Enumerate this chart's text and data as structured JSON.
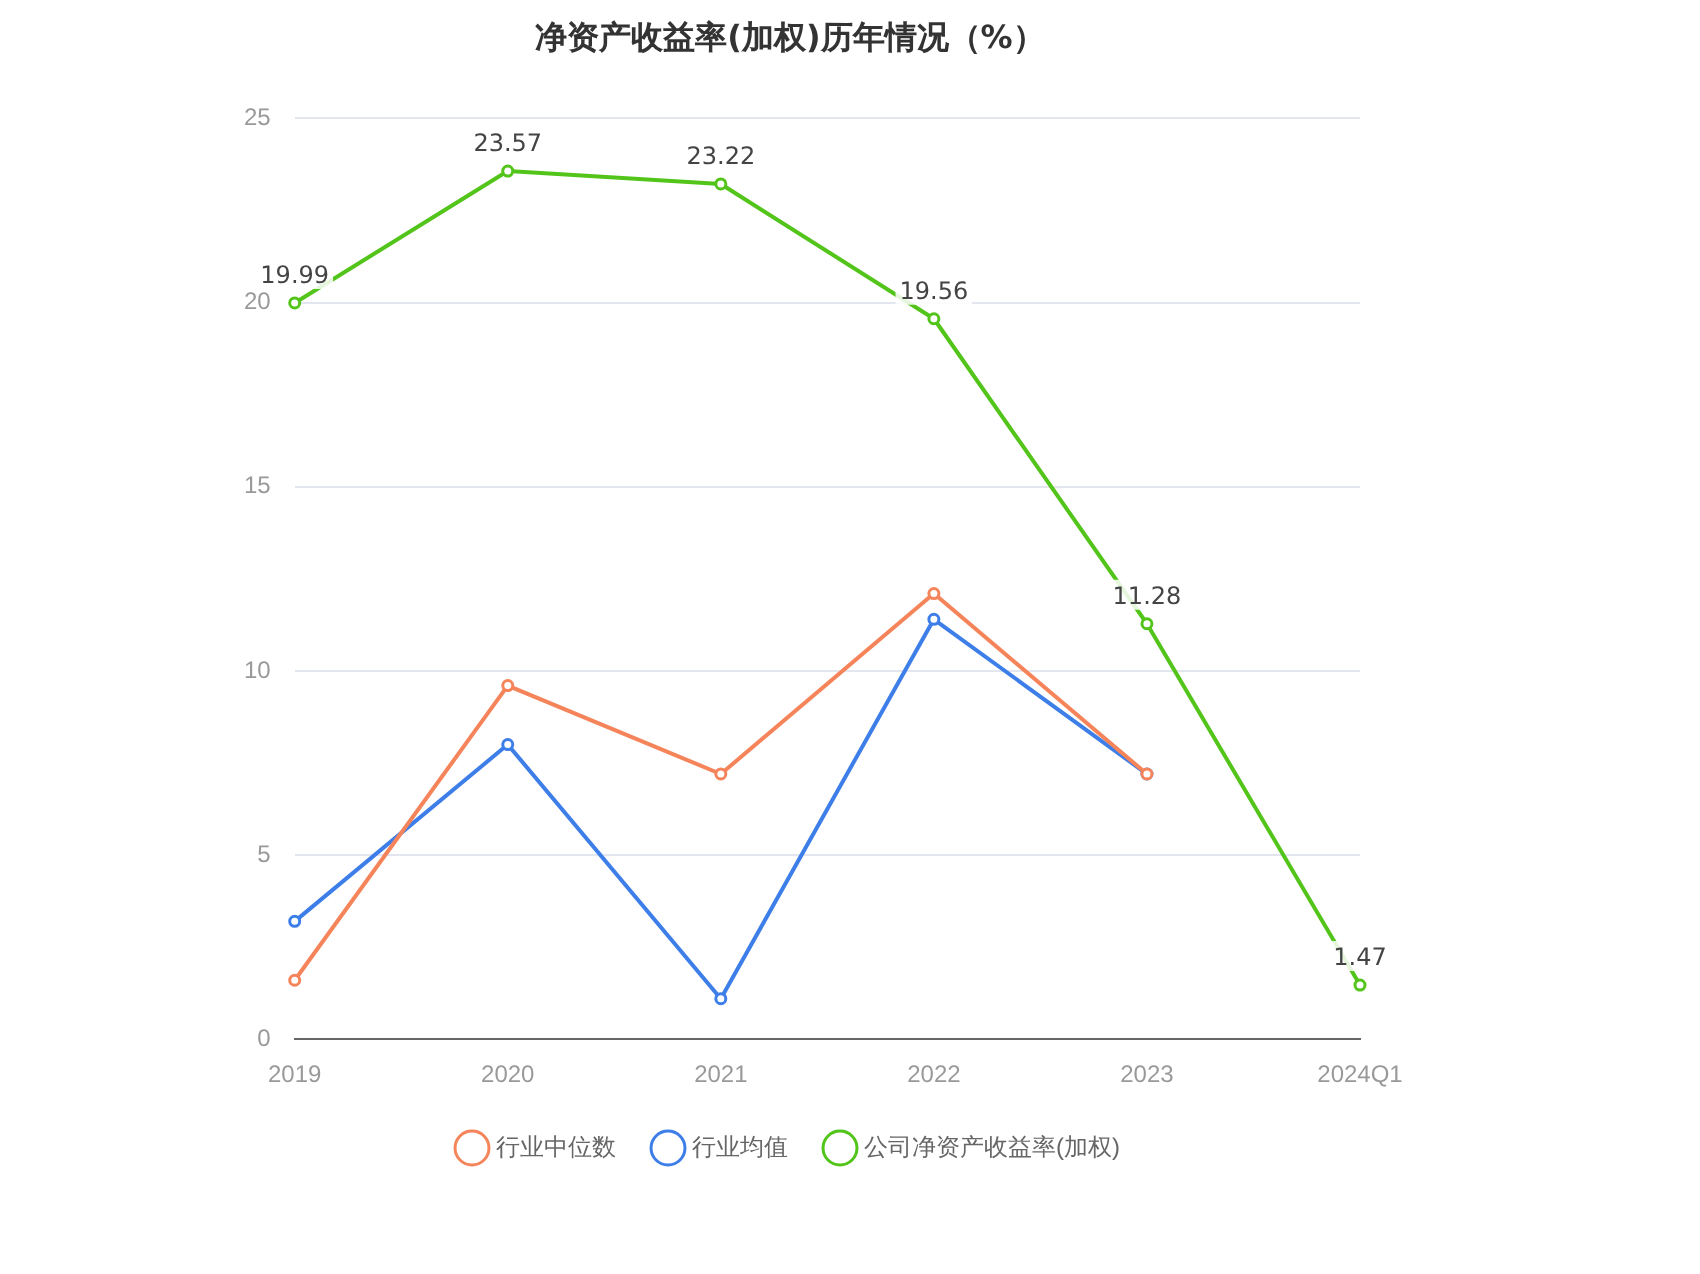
{
  "chart_data": {
    "type": "line",
    "title": "净资产收益率(加权)历年情况（%）",
    "categories": [
      "2019",
      "2020",
      "2021",
      "2022",
      "2023",
      "2024Q1"
    ],
    "series": [
      {
        "name": "公司净资产收益率(加权)",
        "color": "#52c41a",
        "values": [
          19.99,
          23.57,
          23.22,
          19.56,
          11.28,
          1.47
        ],
        "value_labels": [
          "19.99",
          "23.57",
          "23.22",
          "19.56",
          "11.28",
          "1.47"
        ]
      },
      {
        "name": "行业均值",
        "color": "#3d7ee8",
        "values": [
          3.2,
          8.0,
          1.1,
          11.4,
          7.2,
          null
        ]
      },
      {
        "name": "行业中位数",
        "color": "#f5845a",
        "values": [
          1.6,
          9.6,
          7.2,
          12.1,
          7.2,
          null
        ]
      }
    ],
    "ylim": [
      0,
      25
    ],
    "yticks": [
      0,
      5,
      10,
      15,
      20,
      25
    ],
    "grid": "y",
    "legend": "bottom",
    "marker": "circle",
    "line_style": "solid"
  }
}
